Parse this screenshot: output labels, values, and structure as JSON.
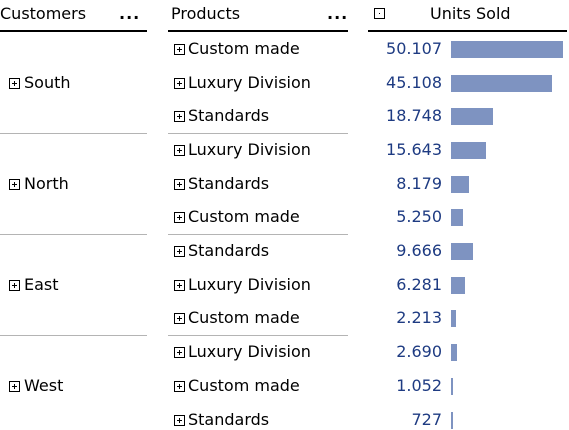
{
  "headers": {
    "customers": "Customers",
    "customers_more": "...",
    "products": "Products",
    "products_more": "...",
    "units_sold": "Units Sold"
  },
  "max_value": 50107,
  "groups": [
    {
      "name": "South",
      "rows": [
        {
          "product": "Custom made",
          "units": "50.107",
          "value": 50107
        },
        {
          "product": "Luxury Division",
          "units": "45.108",
          "value": 45108
        },
        {
          "product": "Standards",
          "units": "18.748",
          "value": 18748
        }
      ]
    },
    {
      "name": "North",
      "rows": [
        {
          "product": "Luxury Division",
          "units": "15.643",
          "value": 15643
        },
        {
          "product": "Standards",
          "units": "8.179",
          "value": 8179
        },
        {
          "product": "Custom made",
          "units": "5.250",
          "value": 5250
        }
      ]
    },
    {
      "name": "East",
      "rows": [
        {
          "product": "Standards",
          "units": "9.666",
          "value": 9666
        },
        {
          "product": "Luxury Division",
          "units": "6.281",
          "value": 6281
        },
        {
          "product": "Custom made",
          "units": "2.213",
          "value": 2213
        }
      ]
    },
    {
      "name": "West",
      "rows": [
        {
          "product": "Luxury Division",
          "units": "2.690",
          "value": 2690
        },
        {
          "product": "Custom made",
          "units": "1.052",
          "value": 1052
        },
        {
          "product": "Standards",
          "units": "727",
          "value": 727
        }
      ]
    }
  ],
  "colors": {
    "bar": "#7e93c1",
    "number_text": "#1e3b82"
  }
}
